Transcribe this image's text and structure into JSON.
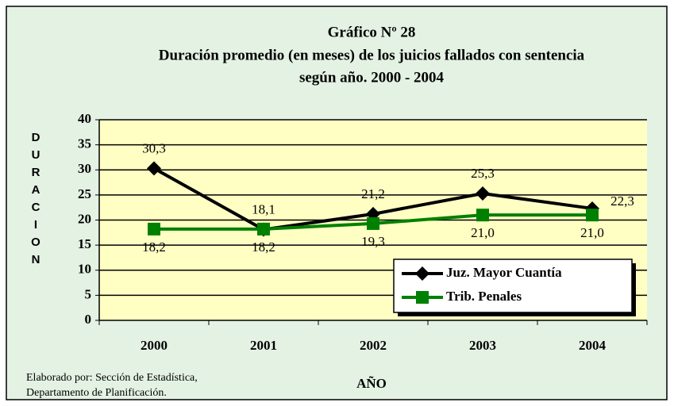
{
  "chart_data": {
    "type": "line",
    "title": "Gráfico Nº 28",
    "subtitle": [
      "Duración promedio (en meses) de los juicios fallados con sentencia",
      "según año. 2000 - 2004"
    ],
    "x_label": "AÑO",
    "y_label": "DURACION",
    "categories": [
      "2000",
      "2001",
      "2002",
      "2003",
      "2004"
    ],
    "series": [
      {
        "name": "Juz. Mayor Cuantía",
        "color": "#000000",
        "marker": "diamond",
        "values": [
          30.3,
          18.1,
          21.2,
          25.3,
          22.3
        ],
        "value_labels": [
          "30,3",
          "18,1",
          "21,2",
          "25,3",
          "22,3"
        ]
      },
      {
        "name": "Trib. Penales",
        "color": "#008000",
        "marker": "square",
        "values": [
          18.2,
          18.2,
          19.3,
          21.0,
          21.0
        ],
        "value_labels": [
          "18,2",
          "18,2",
          "19,3",
          "21,0",
          "21,0"
        ]
      }
    ],
    "ylim": [
      0,
      40
    ],
    "yticks": [
      0,
      5,
      10,
      15,
      20,
      25,
      30,
      35,
      40
    ],
    "grid": true,
    "legend": "lower right",
    "footnote": [
      "Elaborado por: Sección de Estadística,",
      "Departamento de Planificación."
    ]
  }
}
